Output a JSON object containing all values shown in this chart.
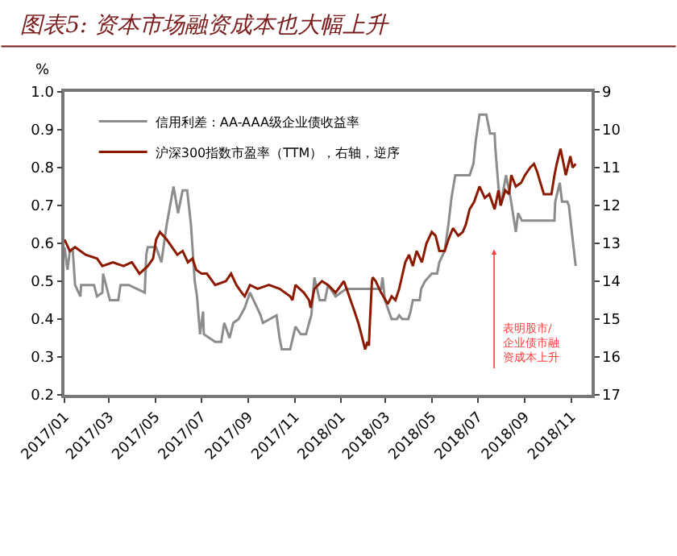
{
  "chart_data": {
    "type": "line",
    "title": "图表5: 资本市场融资成本也大幅上升",
    "ylabel": "%",
    "xlim": [
      "2017-01-01",
      "2018-11-28"
    ],
    "xticks": [
      {
        "value": "2017-01",
        "label": "2017/01"
      },
      {
        "value": "2017-03",
        "label": "2017/03"
      },
      {
        "value": "2017-05",
        "label": "2017/05"
      },
      {
        "value": "2017-07",
        "label": "2017/07"
      },
      {
        "value": "2017-09",
        "label": "2017/09"
      },
      {
        "value": "2017-11",
        "label": "2017/11"
      },
      {
        "value": "2018-01",
        "label": "2018/01"
      },
      {
        "value": "2018-03",
        "label": "2018/03"
      },
      {
        "value": "2018-05",
        "label": "2018/05"
      },
      {
        "value": "2018-07",
        "label": "2018/07"
      },
      {
        "value": "2018-09",
        "label": "2018/09"
      },
      {
        "value": "2018-11",
        "label": "2018/11"
      }
    ],
    "ylim": [
      0.2,
      1.0
    ],
    "yticks": [
      {
        "value": 0.2,
        "label": "0.2"
      },
      {
        "value": 0.3,
        "label": "0.3"
      },
      {
        "value": 0.4,
        "label": "0.4"
      },
      {
        "value": 0.5,
        "label": "0.5"
      },
      {
        "value": 0.6,
        "label": "0.6"
      },
      {
        "value": 0.7,
        "label": "0.7"
      },
      {
        "value": 0.8,
        "label": "0.8"
      },
      {
        "value": 0.9,
        "label": "0.9"
      },
      {
        "value": 1.0,
        "label": "1.0"
      }
    ],
    "y2lim": [
      17,
      9
    ],
    "y2ticks": [
      9,
      10,
      11,
      12,
      13,
      14,
      15,
      16,
      17
    ],
    "grid": false,
    "legend": "top left",
    "marker": "none",
    "line_style": "solid",
    "annotations": [
      "表明股市/企业债市融资成本上升"
    ],
    "series": [
      {
        "name": "信用利差：AA-AAA级企业债收益率",
        "color": "#8c8c8c",
        "x": [
          "2017-01-01",
          "2017-01-05",
          "2017-01-08",
          "2017-01-12",
          "2017-01-15",
          "2017-01-22",
          "2017-01-23",
          "2017-02-09",
          "2017-02-13",
          "2017-02-20",
          "2017-02-21",
          "2017-03-02",
          "2017-03-13",
          "2017-03-16",
          "2017-03-27",
          "2017-04-17",
          "2017-04-19",
          "2017-04-21",
          "2017-05-02",
          "2017-05-09",
          "2017-05-16",
          "2017-05-25",
          "2017-05-31",
          "2017-06-06",
          "2017-06-12",
          "2017-06-17",
          "2017-06-22",
          "2017-06-25",
          "2017-06-29",
          "2017-07-03",
          "2017-07-04",
          "2017-07-19",
          "2017-07-27",
          "2017-07-31",
          "2017-08-07",
          "2017-08-12",
          "2017-08-19",
          "2017-08-27",
          "2017-09-03",
          "2017-09-10",
          "2017-09-17",
          "2017-09-20",
          "2017-10-08",
          "2017-10-12",
          "2017-10-15",
          "2017-10-26",
          "2017-11-02",
          "2017-11-09",
          "2017-11-16",
          "2017-11-20",
          "2017-11-23",
          "2017-11-27",
          "2017-12-04",
          "2017-12-11",
          "2017-12-15",
          "2017-12-25",
          "2018-01-08",
          "2018-02-23",
          "2018-02-25",
          "2018-02-28",
          "2018-03-09",
          "2018-03-16",
          "2018-03-19",
          "2018-03-23",
          "2018-03-31",
          "2018-04-03",
          "2018-04-06",
          "2018-04-15",
          "2018-04-17",
          "2018-04-22",
          "2018-05-01",
          "2018-05-08",
          "2018-05-11",
          "2018-05-18",
          "2018-05-23",
          "2018-05-27",
          "2018-06-01",
          "2018-06-20",
          "2018-06-25",
          "2018-06-28",
          "2018-07-03",
          "2018-07-12",
          "2018-07-17",
          "2018-07-23",
          "2018-07-24",
          "2018-07-28",
          "2018-07-31",
          "2018-08-07",
          "2018-08-13",
          "2018-08-20",
          "2018-08-23",
          "2018-08-28",
          "2018-10-10",
          "2018-10-11",
          "2018-10-17",
          "2018-10-20",
          "2018-10-27",
          "2018-10-29",
          "2018-11-07"
        ],
        "values": [
          0.59,
          0.53,
          0.58,
          0.58,
          0.49,
          0.46,
          0.49,
          0.49,
          0.46,
          0.47,
          0.52,
          0.45,
          0.45,
          0.49,
          0.49,
          0.47,
          0.57,
          0.59,
          0.59,
          0.55,
          0.65,
          0.75,
          0.68,
          0.74,
          0.74,
          0.65,
          0.5,
          0.46,
          0.36,
          0.42,
          0.36,
          0.34,
          0.34,
          0.39,
          0.35,
          0.39,
          0.4,
          0.43,
          0.47,
          0.44,
          0.41,
          0.39,
          0.41,
          0.35,
          0.32,
          0.32,
          0.38,
          0.36,
          0.36,
          0.39,
          0.41,
          0.51,
          0.45,
          0.45,
          0.49,
          0.46,
          0.48,
          0.48,
          0.51,
          0.45,
          0.4,
          0.4,
          0.41,
          0.4,
          0.4,
          0.42,
          0.45,
          0.45,
          0.48,
          0.5,
          0.52,
          0.52,
          0.55,
          0.58,
          0.65,
          0.72,
          0.78,
          0.78,
          0.81,
          0.87,
          0.94,
          0.94,
          0.89,
          0.89,
          0.85,
          0.75,
          0.7,
          0.78,
          0.72,
          0.63,
          0.68,
          0.66,
          0.66,
          0.71,
          0.76,
          0.71,
          0.71,
          0.7,
          0.54
        ]
      },
      {
        "name": "沪深300指数市盈率（TTM），右轴，逆序",
        "color": "#8b1a00",
        "axis": "y2",
        "x": [
          "2017-01-01",
          "2017-01-08",
          "2017-01-15",
          "2017-01-29",
          "2017-02-13",
          "2017-02-20",
          "2017-03-06",
          "2017-03-20",
          "2017-03-31",
          "2017-04-10",
          "2017-04-21",
          "2017-04-28",
          "2017-05-02",
          "2017-05-07",
          "2017-05-16",
          "2017-05-23",
          "2017-05-30",
          "2017-06-06",
          "2017-06-13",
          "2017-06-19",
          "2017-06-24",
          "2017-07-01",
          "2017-07-08",
          "2017-07-19",
          "2017-08-02",
          "2017-08-09",
          "2017-08-16",
          "2017-08-23",
          "2017-08-27",
          "2017-09-03",
          "2017-09-13",
          "2017-09-28",
          "2017-10-12",
          "2017-10-26",
          "2017-10-29",
          "2017-11-02",
          "2017-11-13",
          "2017-11-20",
          "2017-11-22",
          "2017-11-27",
          "2017-12-07",
          "2017-12-15",
          "2017-12-25",
          "2018-01-05",
          "2018-01-12",
          "2018-01-19",
          "2018-01-24",
          "2018-01-28",
          "2018-02-02",
          "2018-02-05",
          "2018-02-07",
          "2018-02-08",
          "2018-02-11",
          "2018-02-12",
          "2018-02-16",
          "2018-02-23",
          "2018-03-04",
          "2018-03-09",
          "2018-03-14",
          "2018-03-19",
          "2018-03-27",
          "2018-04-01",
          "2018-04-06",
          "2018-04-11",
          "2018-04-18",
          "2018-04-24",
          "2018-05-01",
          "2018-05-06",
          "2018-05-11",
          "2018-05-18",
          "2018-05-23",
          "2018-05-29",
          "2018-06-05",
          "2018-06-11",
          "2018-06-15",
          "2018-06-20",
          "2018-06-26",
          "2018-07-03",
          "2018-07-10",
          "2018-07-16",
          "2018-07-23",
          "2018-07-28",
          "2018-07-31",
          "2018-08-06",
          "2018-08-11",
          "2018-08-14",
          "2018-08-20",
          "2018-08-27",
          "2018-09-01",
          "2018-09-08",
          "2018-09-13",
          "2018-09-17",
          "2018-09-26",
          "2018-10-06",
          "2018-10-10",
          "2018-10-13",
          "2018-10-18",
          "2018-10-22",
          "2018-10-25",
          "2018-10-31",
          "2018-11-03",
          "2018-11-07"
        ],
        "values": [
          12.9,
          13.2,
          13.1,
          13.3,
          13.4,
          13.6,
          13.5,
          13.6,
          13.5,
          13.8,
          13.6,
          13.4,
          12.9,
          12.7,
          12.9,
          13.1,
          13.3,
          13.2,
          13.5,
          13.4,
          13.7,
          13.8,
          13.8,
          14.1,
          14.0,
          13.8,
          14.1,
          14.3,
          14.4,
          14.1,
          14.2,
          14.1,
          14.2,
          14.4,
          14.5,
          14.1,
          14.3,
          14.5,
          14.7,
          14.2,
          14.0,
          14.1,
          14.3,
          14.0,
          14.4,
          14.8,
          15.1,
          15.4,
          15.8,
          15.6,
          15.7,
          15.2,
          14.0,
          13.9,
          14.0,
          14.3,
          14.6,
          14.4,
          14.5,
          14.2,
          13.5,
          13.3,
          13.6,
          13.2,
          13.5,
          13.0,
          12.7,
          12.8,
          13.2,
          13.2,
          12.9,
          12.6,
          12.8,
          12.7,
          12.5,
          12.1,
          11.9,
          11.5,
          11.8,
          11.7,
          12.1,
          11.6,
          12.0,
          11.6,
          11.7,
          11.2,
          11.5,
          11.4,
          11.2,
          11.0,
          10.9,
          11.1,
          11.7,
          11.7,
          11.2,
          10.9,
          10.5,
          10.9,
          11.2,
          10.7,
          11.0,
          10.9
        ]
      }
    ]
  }
}
